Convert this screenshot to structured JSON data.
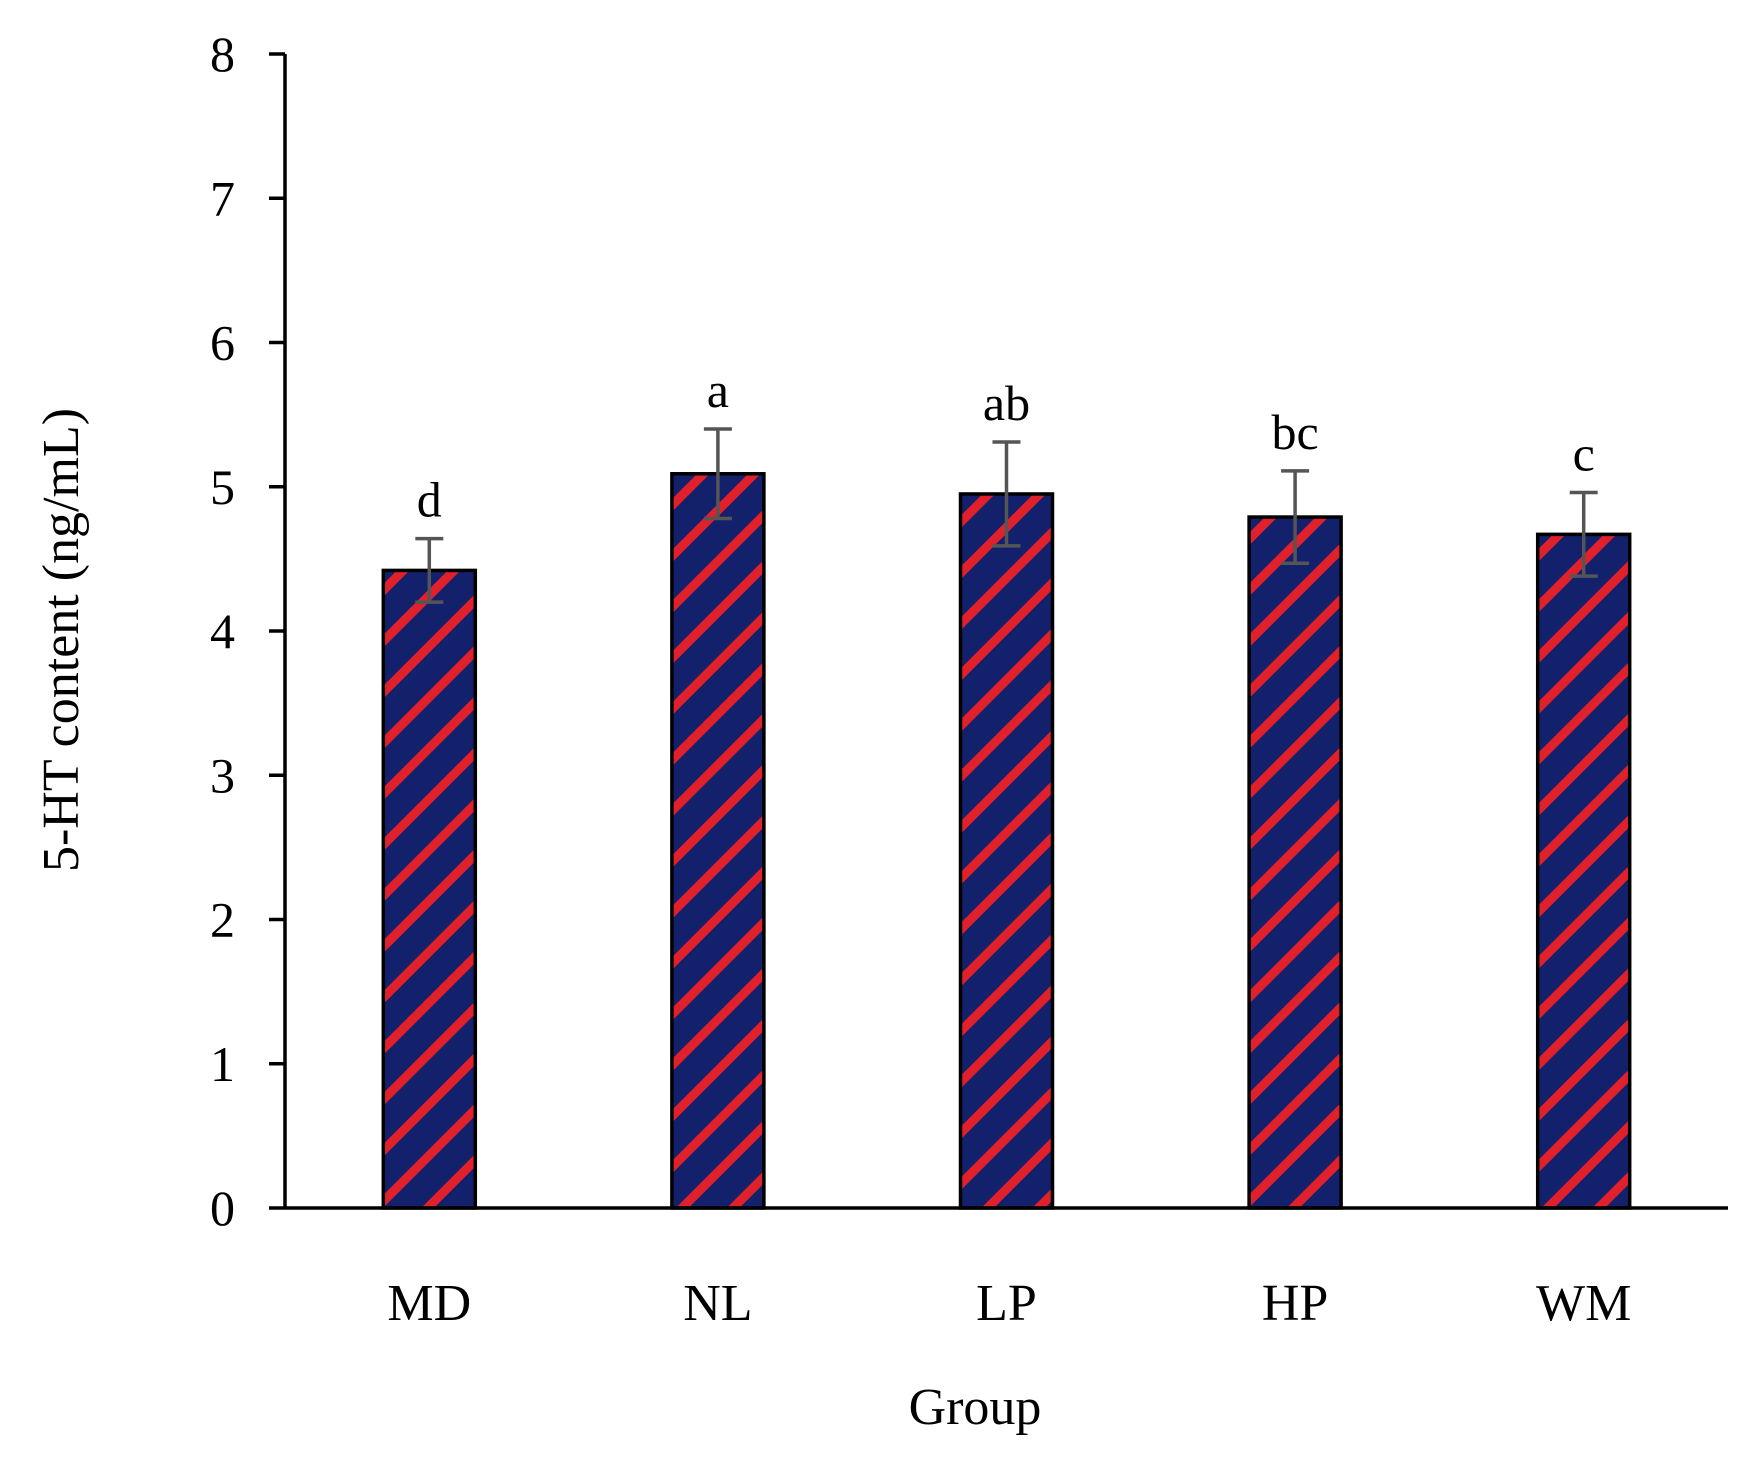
{
  "chart_data": {
    "type": "bar",
    "categories": [
      "MD",
      "NL",
      "LP",
      "HP",
      "WM"
    ],
    "values": [
      4.42,
      5.09,
      4.95,
      4.79,
      4.67
    ],
    "error": [
      0.22,
      0.31,
      0.36,
      0.32,
      0.29
    ],
    "significance_labels": [
      "d",
      "a",
      "ab",
      "bc",
      "c"
    ],
    "title": "",
    "xlabel": "Group",
    "ylabel": "5-HT content (ng/mL)",
    "ylim": [
      0,
      8
    ],
    "yticks": [
      "0",
      "1",
      "2",
      "3",
      "4",
      "5",
      "6",
      "7",
      "8"
    ],
    "grid": false,
    "legend": "none",
    "colors": {
      "bar_fill": "#13206b",
      "bar_stripe": "#e0202a",
      "bar_edge": "#000000",
      "error_bar": "#555555",
      "axis": "#000000"
    }
  }
}
